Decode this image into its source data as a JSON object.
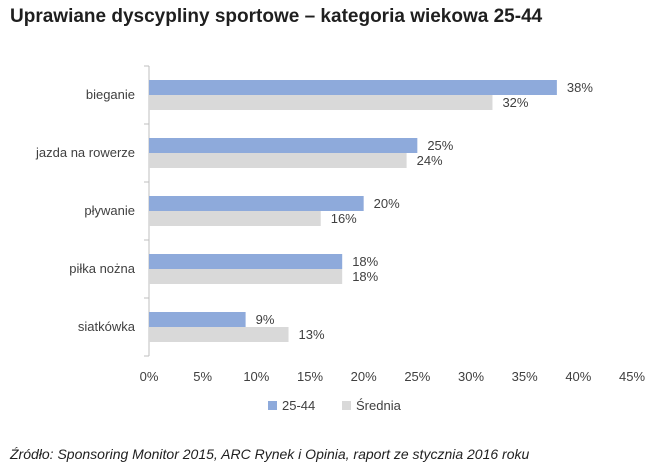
{
  "title": "Uprawiane dyscypliny sportowe – kategoria wiekowa 25-44",
  "source": "Źródło: Sponsoring Monitor 2015, ARC Rynek i Opinia, raport ze stycznia 2016 roku",
  "colors": {
    "series_1": "#8eaadb",
    "series_2": "#d9d9d9",
    "axis": "#bfbfbf"
  },
  "chart_data": {
    "type": "bar",
    "orientation": "horizontal",
    "categories": [
      "bieganie",
      "jazda na rowerze",
      "pływanie",
      "piłka nożna",
      "siatkówka"
    ],
    "series": [
      {
        "name": "25-44",
        "values": [
          38,
          25,
          20,
          18,
          9
        ],
        "labels": [
          "38%",
          "25%",
          "20%",
          "18%",
          "9%"
        ]
      },
      {
        "name": "Średnia",
        "values": [
          32,
          24,
          16,
          18,
          13
        ],
        "labels": [
          "32%",
          "24%",
          "16%",
          "18%",
          "13%"
        ]
      }
    ],
    "xlim": [
      0,
      45
    ],
    "xticks": [
      0,
      5,
      10,
      15,
      20,
      25,
      30,
      35,
      40,
      45
    ],
    "xtick_labels": [
      "0%",
      "5%",
      "10%",
      "15%",
      "20%",
      "25%",
      "30%",
      "35%",
      "40%",
      "45%"
    ],
    "legend_position": "bottom",
    "grid": false
  }
}
